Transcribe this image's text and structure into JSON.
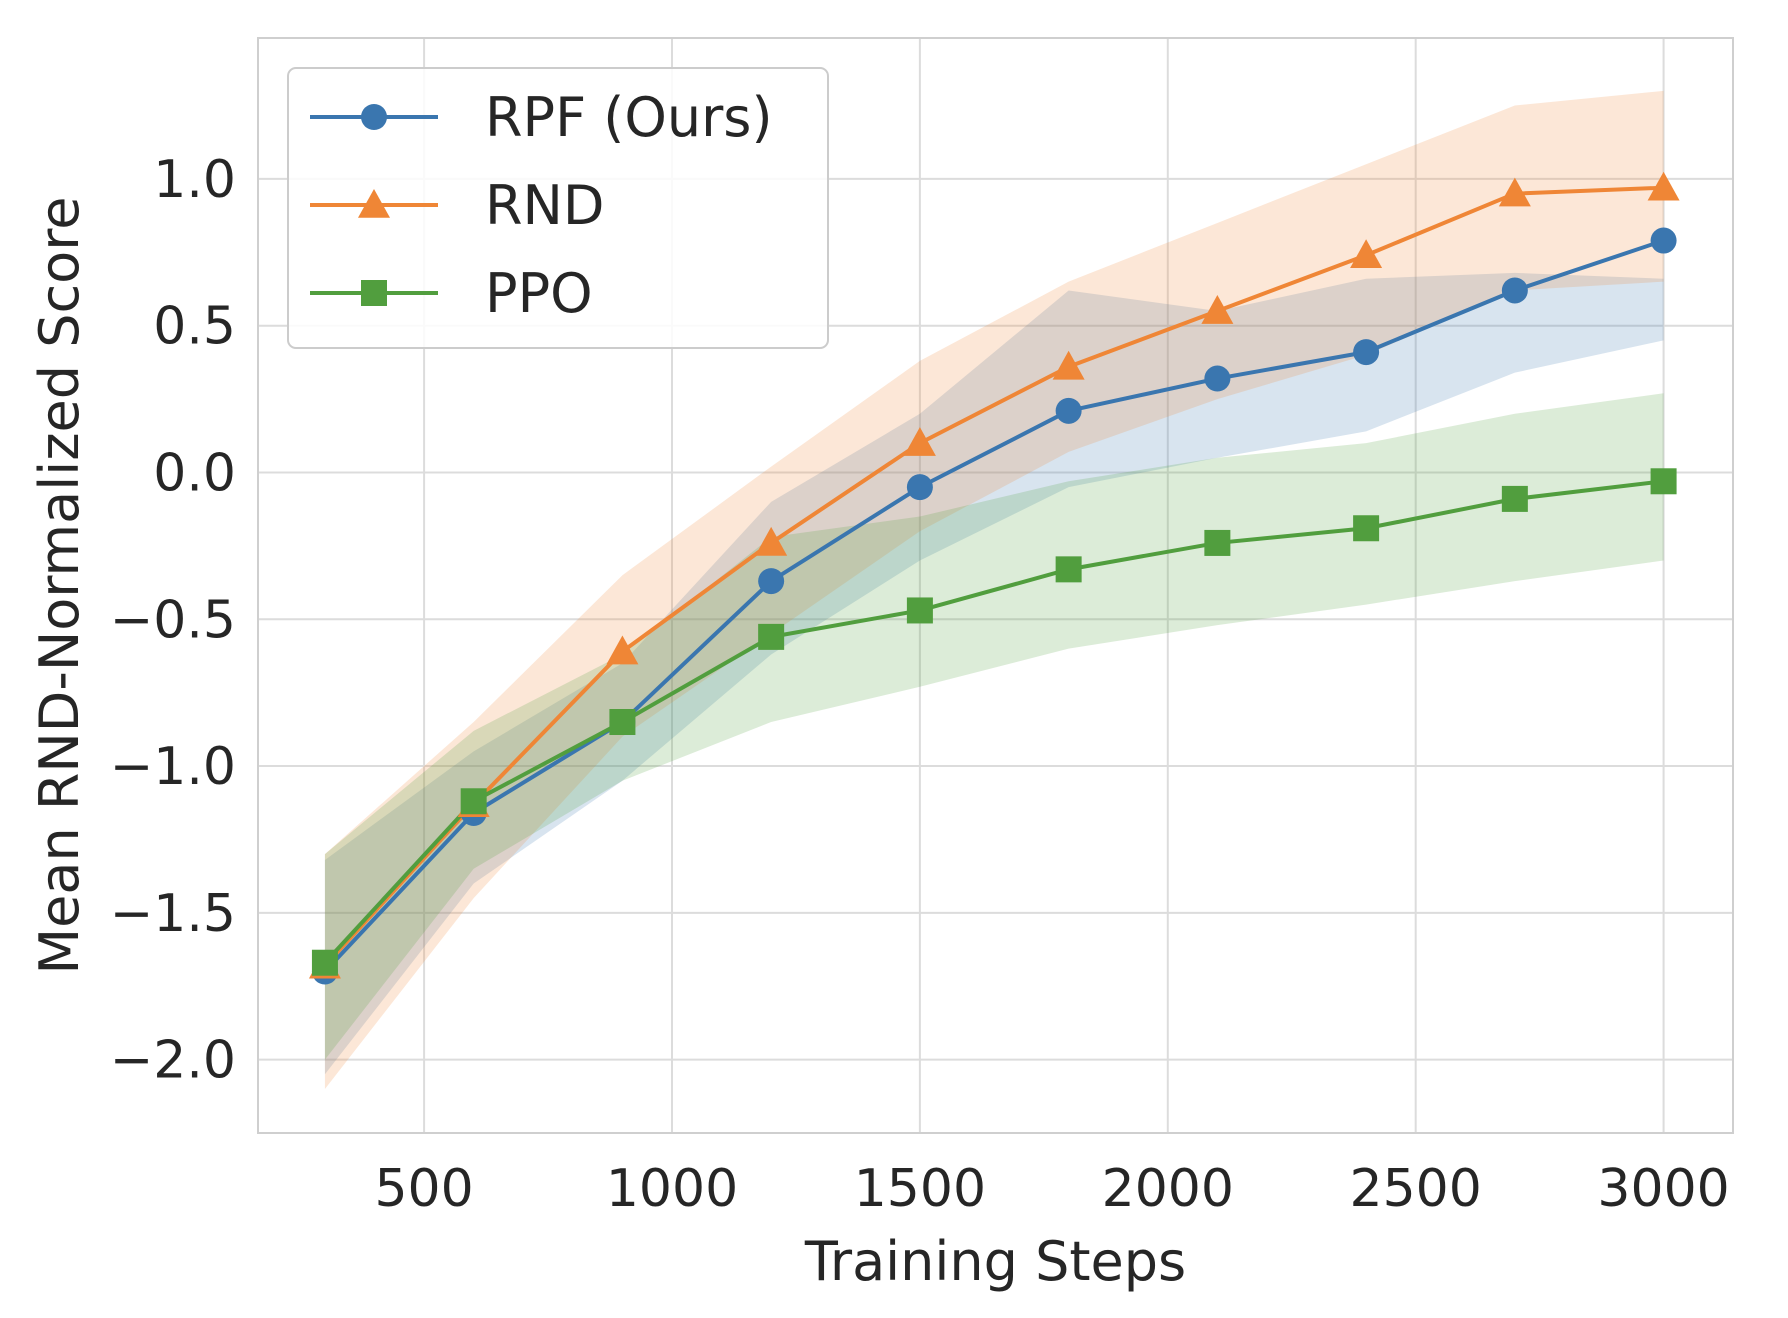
{
  "chart_data": {
    "type": "line",
    "xlabel": "Training Steps",
    "ylabel": "Mean RND-Normalized Score",
    "xlim": [
      165,
      3140
    ],
    "ylim": [
      -2.25,
      1.48
    ],
    "xticks": [
      500,
      1000,
      1500,
      2000,
      2500,
      3000
    ],
    "yticks": [
      -2.0,
      -1.5,
      -1.0,
      -0.5,
      0.0,
      0.5,
      1.0
    ],
    "xtick_labels": [
      "500",
      "1000",
      "1500",
      "2000",
      "2500",
      "3000"
    ],
    "ytick_labels": [
      "−2.0",
      "−1.5",
      "−1.0",
      "−0.5",
      "0.0",
      "0.5",
      "1.0"
    ],
    "grid": true,
    "legend_position": "top-left",
    "x": [
      300,
      600,
      900,
      1200,
      1500,
      1800,
      2100,
      2400,
      2700,
      3000
    ],
    "series": [
      {
        "name": "RPF (Ours)",
        "color": "#3a76af",
        "marker": "circle",
        "values": [
          -1.7,
          -1.16,
          -0.85,
          -0.37,
          -0.05,
          0.21,
          0.32,
          0.41,
          0.62,
          0.79
        ],
        "lower": [
          -2.05,
          -1.4,
          -1.05,
          -0.62,
          -0.3,
          -0.05,
          0.05,
          0.14,
          0.34,
          0.45
        ],
        "upper": [
          -1.32,
          -0.95,
          -0.65,
          -0.1,
          0.2,
          0.62,
          0.55,
          0.66,
          0.68,
          0.66
        ]
      },
      {
        "name": "RND",
        "color": "#ef8636",
        "marker": "triangle",
        "values": [
          -1.68,
          -1.13,
          -0.61,
          -0.24,
          0.1,
          0.36,
          0.55,
          0.74,
          0.95,
          0.97
        ],
        "lower": [
          -2.1,
          -1.45,
          -0.9,
          -0.55,
          -0.2,
          0.07,
          0.25,
          0.4,
          0.62,
          0.65
        ],
        "upper": [
          -1.3,
          -0.85,
          -0.35,
          0.02,
          0.38,
          0.65,
          0.85,
          1.05,
          1.25,
          1.3
        ]
      },
      {
        "name": "PPO",
        "color": "#519e3e",
        "marker": "square",
        "values": [
          -1.67,
          -1.12,
          -0.85,
          -0.56,
          -0.47,
          -0.33,
          -0.24,
          -0.19,
          -0.09,
          -0.03
        ],
        "lower": [
          -2.0,
          -1.35,
          -1.05,
          -0.85,
          -0.73,
          -0.6,
          -0.52,
          -0.45,
          -0.37,
          -0.3
        ],
        "upper": [
          -1.3,
          -0.88,
          -0.62,
          -0.22,
          -0.15,
          -0.03,
          0.05,
          0.1,
          0.2,
          0.27
        ]
      }
    ]
  }
}
